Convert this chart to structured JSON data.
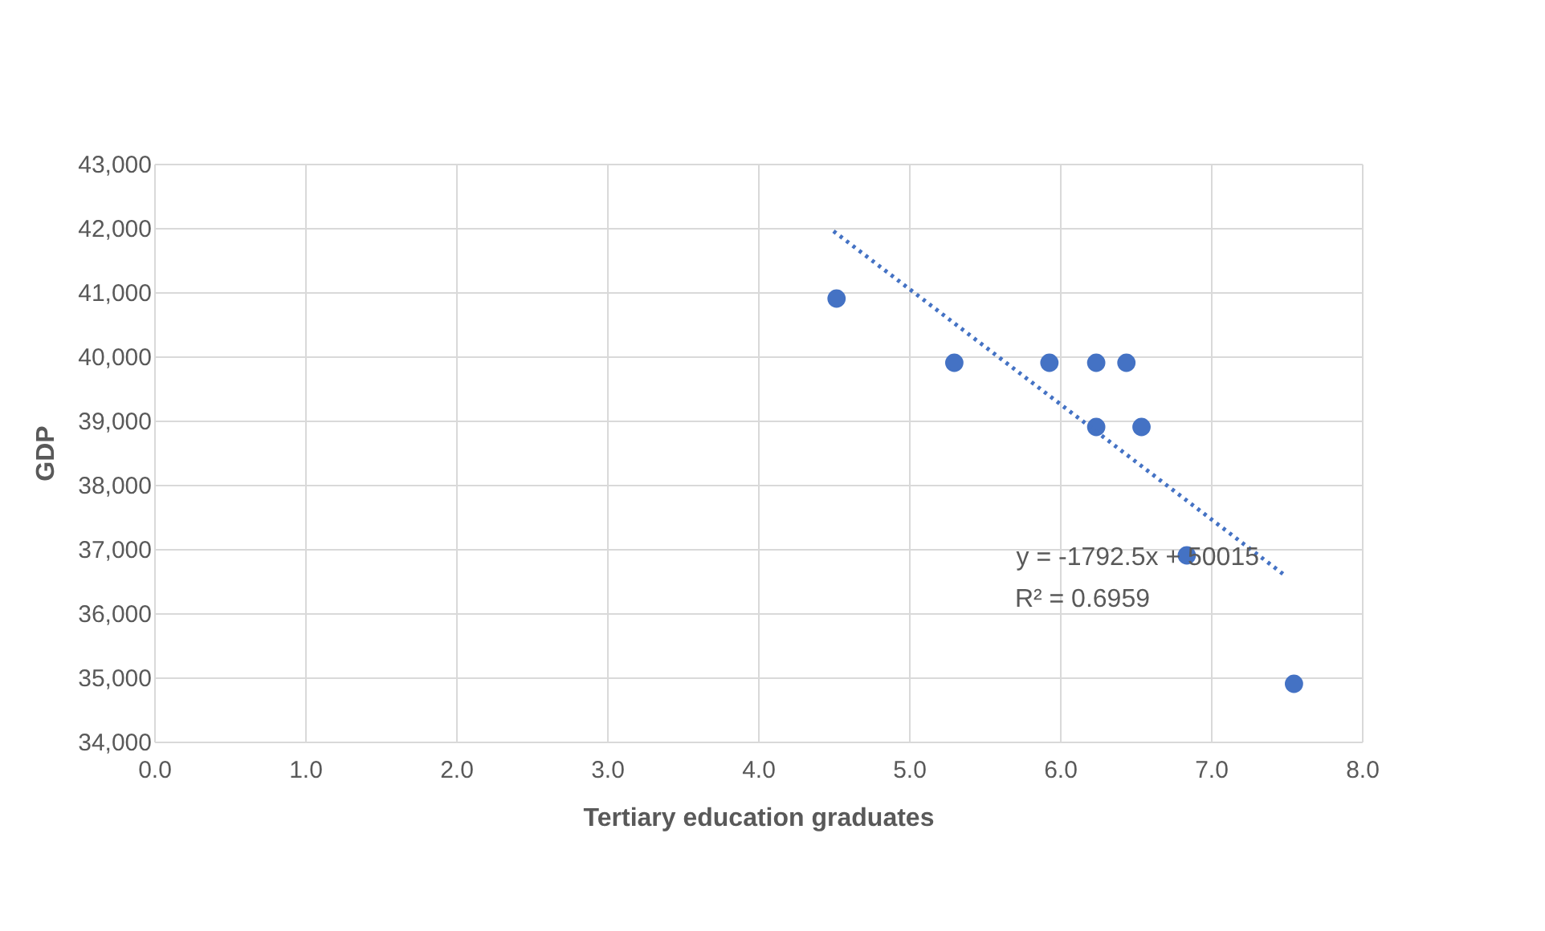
{
  "chart_data": {
    "type": "scatter",
    "xlabel": "Tertiary education graduates",
    "ylabel": "GDP",
    "xlim": [
      0,
      8
    ],
    "xticks": [
      {
        "value": 0,
        "label": "0.0"
      },
      {
        "value": 1,
        "label": "1.0"
      },
      {
        "value": 2,
        "label": "2.0"
      },
      {
        "value": 3,
        "label": "3.0"
      },
      {
        "value": 4,
        "label": "4.0"
      },
      {
        "value": 5,
        "label": "5.0"
      },
      {
        "value": 6,
        "label": "6.0"
      },
      {
        "value": 7,
        "label": "7.0"
      },
      {
        "value": 8,
        "label": "8.0"
      }
    ],
    "ylim": [
      34000,
      43000
    ],
    "yticks": [
      {
        "value": 34000,
        "label": "34,000"
      },
      {
        "value": 35000,
        "label": "35,000"
      },
      {
        "value": 36000,
        "label": "36,000"
      },
      {
        "value": 37000,
        "label": "37,000"
      },
      {
        "value": 38000,
        "label": "38,000"
      },
      {
        "value": 39000,
        "label": "39,000"
      },
      {
        "value": 40000,
        "label": "40,000"
      },
      {
        "value": 41000,
        "label": "41,000"
      },
      {
        "value": 42000,
        "label": "42,000"
      },
      {
        "value": 43000,
        "label": "43,000"
      }
    ],
    "grid": true,
    "marker": "circle",
    "series": [
      {
        "color": "#4472c4",
        "x": [
          4.52,
          5.3,
          5.93,
          6.24,
          6.44,
          6.24,
          6.54,
          6.84,
          7.55
        ],
        "values": [
          40900,
          39900,
          39900,
          39900,
          39900,
          38900,
          38900,
          36900,
          34900
        ]
      },
      {
        "type": "line",
        "color": "#4472c4",
        "line_style": "dotted",
        "marker": "none",
        "x": [
          4.5,
          7.5
        ],
        "values": [
          41950,
          36570
        ]
      }
    ],
    "annotations": [
      "y = -1792.5x + 50015",
      "R² = 0.6959"
    ]
  }
}
